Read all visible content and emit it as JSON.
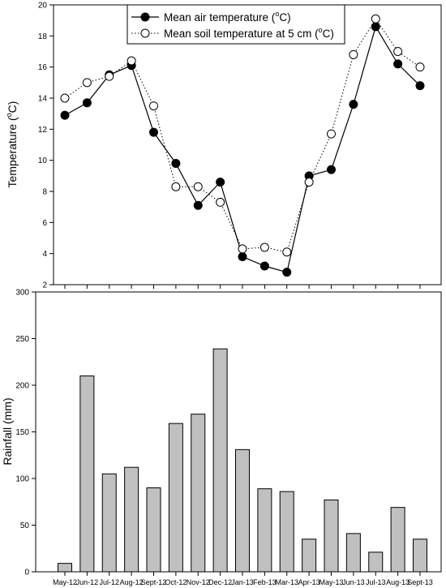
{
  "chart_data": [
    {
      "type": "line",
      "xlabel": "",
      "ylabel": "Temperature (°C)",
      "ylabel_main": "Temperature (",
      "ylabel_sup": "o",
      "ylabel_tail": "C)",
      "ylim": [
        2,
        20
      ],
      "yticks": [
        "2",
        "4",
        "6",
        "8",
        "10",
        "12",
        "14",
        "16",
        "18",
        "20"
      ],
      "grid": false,
      "legend_position": "top-center",
      "categories": [
        "May-12",
        "Jun-12",
        "Jul-12",
        "Aug-12",
        "Sept-12",
        "Oct-12",
        "Nov-12",
        "Dec-12",
        "Jan-13",
        "Feb-13",
        "Mar-13",
        "Apr-13",
        "May-13",
        "Jun-13",
        "Jul-13",
        "Aug-13",
        "Sept-13"
      ],
      "series": [
        {
          "name": "Mean air temperature (°C)",
          "legend_main": "Mean air temperature (",
          "legend_sup": "o",
          "legend_tail": "C)",
          "style": "solid line, filled circle",
          "values": [
            12.9,
            13.7,
            15.5,
            16.1,
            11.8,
            9.8,
            7.1,
            8.6,
            3.8,
            3.2,
            2.8,
            9.0,
            9.4,
            13.6,
            18.6,
            16.2,
            14.8
          ]
        },
        {
          "name": "Mean soil temperature at 5 cm (°C)",
          "legend_main": "Mean soil temperature at 5 cm (",
          "legend_sup": "o",
          "legend_tail": "C)",
          "style": "dotted line, open circle",
          "values": [
            14.0,
            15.0,
            15.4,
            16.4,
            13.5,
            8.3,
            8.3,
            7.3,
            4.3,
            4.4,
            4.1,
            8.6,
            11.7,
            16.8,
            19.1,
            17.0,
            16.0
          ]
        }
      ]
    },
    {
      "type": "bar",
      "xlabel": "",
      "ylabel": "Rainfall (mm)",
      "ylim": [
        0,
        300
      ],
      "yticks": [
        "0",
        "50",
        "100",
        "150",
        "200",
        "250",
        "300"
      ],
      "grid": false,
      "bar_color": "#c0c0c0",
      "categories": [
        "May-12",
        "Jun-12",
        "Jul-12",
        "Aug-12",
        "Sept-12",
        "Oct-12",
        "Nov-12",
        "Dec-12",
        "Jan-13",
        "Feb-13",
        "Mar-13",
        "Apr-13",
        "May-13",
        "Jun-13",
        "Jul-13",
        "Aug-13",
        "Sept-13"
      ],
      "values": [
        9,
        210,
        105,
        112,
        90,
        159,
        169,
        239,
        131,
        89,
        86,
        35,
        77,
        41,
        21,
        69,
        35
      ]
    }
  ]
}
